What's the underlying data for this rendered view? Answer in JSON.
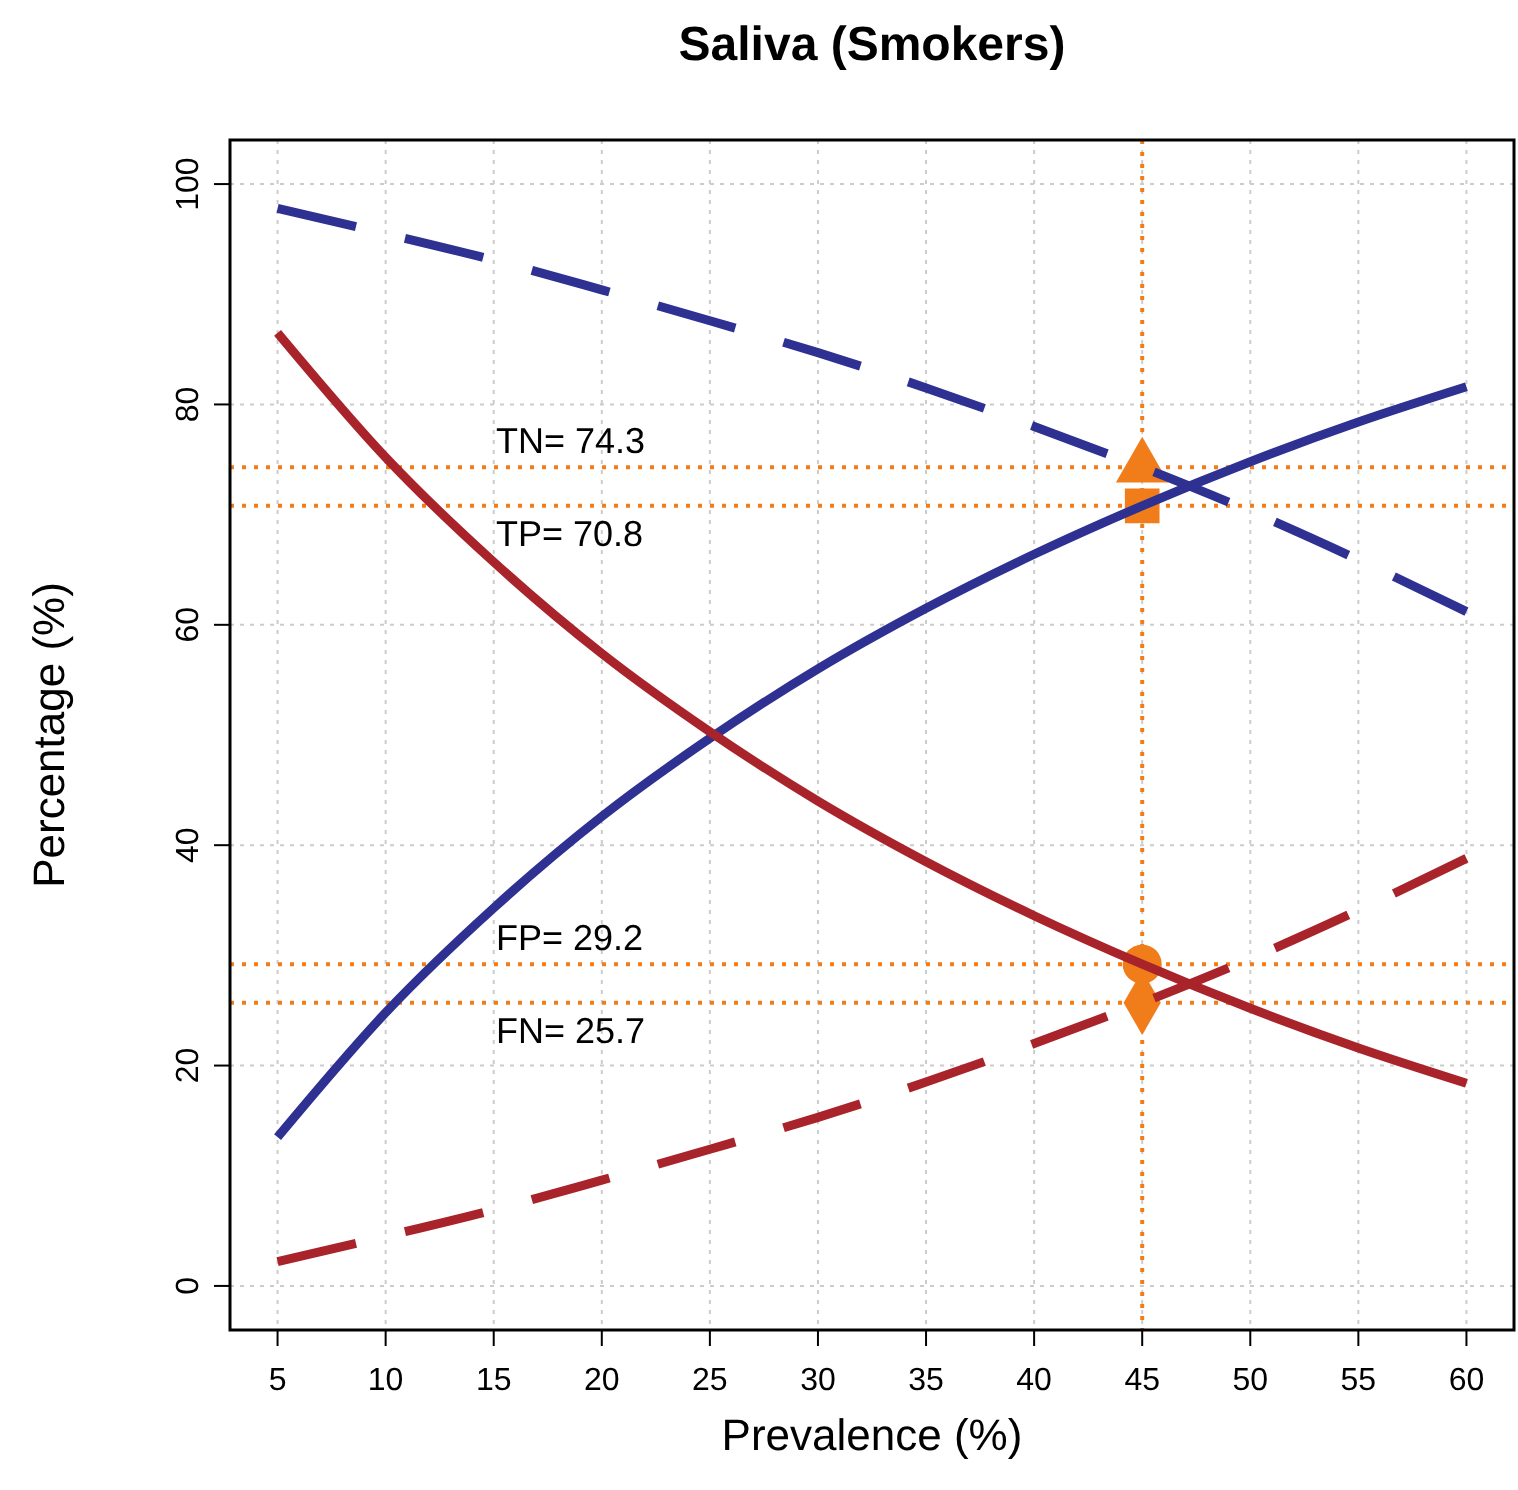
{
  "chart_data": {
    "type": "line",
    "title": "Saliva (Smokers)",
    "xlabel": "Prevalence (%)",
    "ylabel": "Percentage (%)",
    "x": [
      5,
      10,
      15,
      20,
      25,
      30,
      35,
      40,
      45,
      50,
      55,
      60
    ],
    "series": [
      {
        "color": "#2e3192",
        "line_style": "solid",
        "marker": "none",
        "values": [
          13.5,
          24.8,
          34.3,
          42.6,
          49.7,
          56.0,
          61.5,
          66.4,
          70.8,
          74.8,
          78.4,
          81.6
        ]
      },
      {
        "color": "#a8242a",
        "line_style": "solid",
        "marker": "none",
        "values": [
          86.5,
          75.2,
          65.7,
          57.4,
          50.3,
          44.0,
          38.5,
          33.6,
          29.2,
          25.2,
          21.6,
          18.4
        ]
      },
      {
        "color": "#2e3192",
        "line_style": "dashed",
        "marker": "none",
        "values": [
          97.8,
          95.5,
          93.1,
          90.4,
          87.6,
          84.7,
          81.5,
          78.0,
          74.3,
          70.3,
          65.9,
          61.2
        ]
      },
      {
        "color": "#a8242a",
        "line_style": "dashed",
        "marker": "none",
        "values": [
          2.2,
          4.5,
          6.9,
          9.6,
          12.4,
          15.3,
          18.5,
          22.0,
          25.7,
          29.7,
          34.1,
          38.8
        ]
      },
      {
        "type": "scatter",
        "color": "#f07d1a",
        "marker": "triangle",
        "values": [
          null,
          null,
          null,
          null,
          null,
          null,
          null,
          null,
          74.3,
          null,
          null,
          null
        ]
      },
      {
        "type": "scatter",
        "color": "#f07d1a",
        "marker": "square",
        "values": [
          null,
          null,
          null,
          null,
          null,
          null,
          null,
          null,
          70.8,
          null,
          null,
          null
        ]
      },
      {
        "type": "scatter",
        "color": "#f07d1a",
        "marker": "circle",
        "values": [
          null,
          null,
          null,
          null,
          null,
          null,
          null,
          null,
          29.2,
          null,
          null,
          null
        ]
      },
      {
        "type": "scatter",
        "color": "#f07d1a",
        "marker": "diamond",
        "values": [
          null,
          null,
          null,
          null,
          null,
          null,
          null,
          null,
          25.7,
          null,
          null,
          null
        ]
      }
    ],
    "ref_lines": [
      {
        "axis": "x",
        "value": 45,
        "color": "#f07d1a",
        "line_style": "dotted"
      },
      {
        "axis": "y",
        "value": 74.3,
        "color": "#f07d1a",
        "line_style": "dotted",
        "label": "TN= 74.3"
      },
      {
        "axis": "y",
        "value": 70.8,
        "color": "#f07d1a",
        "line_style": "dotted",
        "label": "TP= 70.8"
      },
      {
        "axis": "y",
        "value": 29.2,
        "color": "#f07d1a",
        "line_style": "dotted",
        "label": "FP= 29.2"
      },
      {
        "axis": "y",
        "value": 25.7,
        "color": "#f07d1a",
        "line_style": "dotted",
        "label": "FN= 25.7"
      }
    ],
    "xlim": [
      2.8,
      62.2
    ],
    "ylim": [
      -4,
      104
    ],
    "xticks": [
      5,
      10,
      15,
      20,
      25,
      30,
      35,
      40,
      45,
      50,
      55,
      60
    ],
    "yticks": [
      0,
      20,
      40,
      60,
      80,
      100
    ],
    "grid": true
  }
}
